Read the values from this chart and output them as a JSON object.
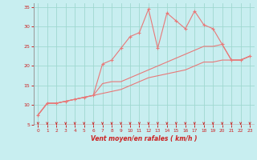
{
  "xlabel": "Vent moyen/en rafales ( km/h )",
  "xlim": [
    -0.5,
    23.5
  ],
  "ylim": [
    5,
    36
  ],
  "yticks": [
    5,
    10,
    15,
    20,
    25,
    30,
    35
  ],
  "xticks": [
    0,
    1,
    2,
    3,
    4,
    5,
    6,
    7,
    8,
    9,
    10,
    11,
    12,
    13,
    14,
    15,
    16,
    17,
    18,
    19,
    20,
    21,
    22,
    23
  ],
  "bg_color": "#c8eef0",
  "grid_color": "#a0d8d0",
  "line_color": "#e87878",
  "tick_color": "#cc2222",
  "spine_color": "#999999",
  "line1_x": [
    0,
    1,
    2,
    3,
    4,
    5,
    6,
    7,
    8,
    9,
    10,
    11,
    12,
    13,
    14,
    15,
    16,
    17,
    18,
    19,
    20,
    21,
    22,
    23
  ],
  "line1_y": [
    7.5,
    10.5,
    10.5,
    11,
    11.5,
    12,
    12.5,
    20.5,
    21.5,
    24.5,
    27.5,
    28.5,
    34.5,
    24.5,
    33.5,
    31.5,
    29.5,
    34,
    30.5,
    29.5,
    25.5,
    21.5,
    21.5,
    22.5
  ],
  "line2_x": [
    0,
    1,
    2,
    3,
    4,
    5,
    6,
    7,
    8,
    9,
    10,
    11,
    12,
    13,
    14,
    15,
    16,
    17,
    18,
    19,
    20,
    21,
    22,
    23
  ],
  "line2_y": [
    7.5,
    10.5,
    10.5,
    11,
    11.5,
    12,
    12.5,
    15.5,
    16,
    16,
    17,
    18,
    19,
    20,
    21,
    22,
    23,
    24,
    25,
    25,
    25.5,
    21.5,
    21.5,
    22.5
  ],
  "line3_x": [
    0,
    1,
    2,
    3,
    4,
    5,
    6,
    7,
    8,
    9,
    10,
    11,
    12,
    13,
    14,
    15,
    16,
    17,
    18,
    19,
    20,
    21,
    22,
    23
  ],
  "line3_y": [
    7.5,
    10.5,
    10.5,
    11,
    11.5,
    12,
    12.5,
    13,
    13.5,
    14,
    15,
    16,
    17,
    17.5,
    18,
    18.5,
    19,
    20,
    21,
    21,
    21.5,
    21.5,
    21.5,
    22.5
  ]
}
